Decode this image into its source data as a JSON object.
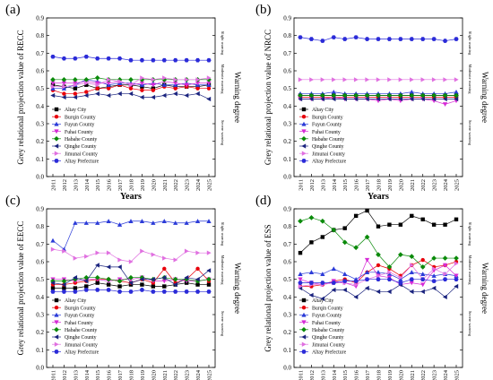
{
  "figure": {
    "shared": {
      "x_label": "Years",
      "warning_label": "Warning degree",
      "warning_levels": [
        "Slight warning",
        "Moderate warning",
        "Severe warning"
      ]
    }
  },
  "chart_data": [
    {
      "type": "line",
      "panel_label": "(a)",
      "ylabel": "Grey relational projection value of RECC",
      "xlabel": "Years",
      "ylim": [
        0.0,
        0.9
      ],
      "legend_position": "lower-left",
      "right_axis_label": "Warning degree",
      "warning_levels": [
        "Slight warning",
        "Moderate warning",
        "Severe warning"
      ],
      "x": [
        2011,
        2012,
        2013,
        2014,
        2015,
        2016,
        2017,
        2018,
        2019,
        2020,
        2021,
        2022,
        2023,
        2024,
        2025
      ],
      "series": [
        {
          "name": "Altay City",
          "color": "#000000",
          "marker": "square",
          "values": [
            0.52,
            0.51,
            0.5,
            0.52,
            0.5,
            0.51,
            0.52,
            0.52,
            0.51,
            0.5,
            0.52,
            0.51,
            0.51,
            0.51,
            0.52
          ]
        },
        {
          "name": "Burqin County",
          "color": "#e8000b",
          "marker": "circle",
          "values": [
            0.49,
            0.47,
            0.47,
            0.48,
            0.5,
            0.5,
            0.52,
            0.5,
            0.49,
            0.49,
            0.51,
            0.5,
            0.51,
            0.5,
            0.5
          ]
        },
        {
          "name": "Fuyun County",
          "color": "#2b3bd8",
          "marker": "triangle-up",
          "values": [
            0.5,
            0.5,
            0.52,
            0.55,
            0.54,
            0.52,
            0.53,
            0.53,
            0.52,
            0.53,
            0.52,
            0.52,
            0.53,
            0.52,
            0.52
          ]
        },
        {
          "name": "Fuhai County",
          "color": "#d62bd6",
          "marker": "triangle-down",
          "values": [
            0.53,
            0.53,
            0.53,
            0.54,
            0.53,
            0.53,
            0.54,
            0.52,
            0.53,
            0.52,
            0.54,
            0.53,
            0.52,
            0.53,
            0.53
          ]
        },
        {
          "name": "Habahe County",
          "color": "#0a8a0a",
          "marker": "diamond",
          "values": [
            0.55,
            0.55,
            0.55,
            0.55,
            0.56,
            0.55,
            0.55,
            0.55,
            0.55,
            0.55,
            0.55,
            0.55,
            0.55,
            0.55,
            0.55
          ]
        },
        {
          "name": "Qinghe County",
          "color": "#1a237e",
          "marker": "triangle-left",
          "values": [
            0.46,
            0.45,
            0.45,
            0.46,
            0.47,
            0.46,
            0.47,
            0.47,
            0.45,
            0.45,
            0.46,
            0.47,
            0.46,
            0.47,
            0.44
          ]
        },
        {
          "name": "Jimunai County",
          "color": "#e070e0",
          "marker": "triangle-right",
          "values": [
            0.51,
            0.51,
            0.52,
            0.53,
            0.52,
            0.55,
            0.54,
            0.52,
            0.56,
            0.55,
            0.56,
            0.55,
            0.55,
            0.55,
            0.56
          ]
        },
        {
          "name": "Altay Prefecture",
          "color": "#2b2bd8",
          "marker": "hexagon",
          "values": [
            0.68,
            0.67,
            0.67,
            0.68,
            0.67,
            0.67,
            0.67,
            0.66,
            0.66,
            0.66,
            0.66,
            0.66,
            0.66,
            0.66,
            0.66
          ]
        }
      ]
    },
    {
      "type": "line",
      "panel_label": "(b)",
      "ylabel": "Grey relational projection value of NRCC",
      "xlabel": "Years",
      "ylim": [
        0.0,
        0.9
      ],
      "legend_position": "lower-left",
      "right_axis_label": "Warning degree",
      "warning_levels": [
        "Slight warning",
        "Moderate warning",
        "Severe warning"
      ],
      "x": [
        2011,
        2012,
        2013,
        2014,
        2015,
        2016,
        2017,
        2018,
        2019,
        2020,
        2021,
        2022,
        2023,
        2024,
        2025
      ],
      "series": [
        {
          "name": "Altay City",
          "color": "#000000",
          "marker": "square",
          "values": [
            0.46,
            0.46,
            0.46,
            0.46,
            0.46,
            0.46,
            0.46,
            0.46,
            0.46,
            0.46,
            0.46,
            0.46,
            0.46,
            0.46,
            0.46
          ]
        },
        {
          "name": "Burqin County",
          "color": "#e8000b",
          "marker": "circle",
          "values": [
            0.45,
            0.45,
            0.45,
            0.45,
            0.45,
            0.45,
            0.45,
            0.45,
            0.45,
            0.45,
            0.45,
            0.45,
            0.45,
            0.45,
            0.45
          ]
        },
        {
          "name": "Fuyun County",
          "color": "#2b3bd8",
          "marker": "triangle-up",
          "values": [
            0.47,
            0.47,
            0.47,
            0.48,
            0.47,
            0.47,
            0.47,
            0.47,
            0.47,
            0.47,
            0.48,
            0.47,
            0.47,
            0.47,
            0.48
          ]
        },
        {
          "name": "Fuhai County",
          "color": "#d62bd6",
          "marker": "triangle-down",
          "values": [
            0.44,
            0.44,
            0.44,
            0.45,
            0.44,
            0.44,
            0.44,
            0.43,
            0.44,
            0.43,
            0.44,
            0.44,
            0.43,
            0.41,
            0.43
          ]
        },
        {
          "name": "Habahe County",
          "color": "#0a8a0a",
          "marker": "diamond",
          "values": [
            0.46,
            0.46,
            0.46,
            0.46,
            0.46,
            0.46,
            0.46,
            0.46,
            0.46,
            0.46,
            0.46,
            0.46,
            0.46,
            0.46,
            0.46
          ]
        },
        {
          "name": "Qinghe County",
          "color": "#1a237e",
          "marker": "triangle-left",
          "values": [
            0.44,
            0.44,
            0.44,
            0.44,
            0.44,
            0.44,
            0.44,
            0.44,
            0.44,
            0.44,
            0.44,
            0.44,
            0.44,
            0.44,
            0.44
          ]
        },
        {
          "name": "Jimunai County",
          "color": "#e070e0",
          "marker": "triangle-right",
          "values": [
            0.55,
            0.55,
            0.55,
            0.55,
            0.55,
            0.55,
            0.55,
            0.55,
            0.55,
            0.55,
            0.55,
            0.55,
            0.55,
            0.55,
            0.55
          ]
        },
        {
          "name": "Altay Prefecture",
          "color": "#2b2bd8",
          "marker": "hexagon",
          "values": [
            0.79,
            0.78,
            0.77,
            0.79,
            0.78,
            0.79,
            0.78,
            0.78,
            0.78,
            0.78,
            0.78,
            0.78,
            0.78,
            0.77,
            0.78
          ]
        }
      ]
    },
    {
      "type": "line",
      "panel_label": "(c)",
      "ylabel": "Grey relational projection value of EECC",
      "xlabel": "Years",
      "ylim": [
        0.0,
        0.9
      ],
      "legend_position": "lower-left",
      "right_axis_label": "Warning degree",
      "warning_levels": [
        "Slight warning",
        "Moderate warning",
        "Severe warning"
      ],
      "x": [
        2011,
        2012,
        2013,
        2014,
        2015,
        2016,
        2017,
        2018,
        2019,
        2020,
        2021,
        2022,
        2023,
        2024,
        2025
      ],
      "series": [
        {
          "name": "Altay City",
          "color": "#000000",
          "marker": "square",
          "values": [
            0.45,
            0.45,
            0.45,
            0.46,
            0.48,
            0.47,
            0.46,
            0.47,
            0.47,
            0.46,
            0.46,
            0.47,
            0.48,
            0.47,
            0.47
          ]
        },
        {
          "name": "Burqin County",
          "color": "#e8000b",
          "marker": "circle",
          "values": [
            0.47,
            0.47,
            0.48,
            0.49,
            0.5,
            0.5,
            0.49,
            0.48,
            0.5,
            0.48,
            0.56,
            0.48,
            0.5,
            0.56,
            0.49
          ]
        },
        {
          "name": "Fuyun County",
          "color": "#2b3bd8",
          "marker": "triangle-up",
          "values": [
            0.72,
            0.67,
            0.82,
            0.82,
            0.82,
            0.83,
            0.81,
            0.83,
            0.83,
            0.82,
            0.83,
            0.82,
            0.82,
            0.83,
            0.83
          ]
        },
        {
          "name": "Fuhai County",
          "color": "#d62bd6",
          "marker": "triangle-down",
          "values": [
            0.5,
            0.5,
            0.49,
            0.5,
            0.5,
            0.49,
            0.5,
            0.5,
            0.51,
            0.49,
            0.49,
            0.5,
            0.49,
            0.49,
            0.5
          ]
        },
        {
          "name": "Habahe County",
          "color": "#0a8a0a",
          "marker": "diamond",
          "values": [
            0.49,
            0.49,
            0.5,
            0.51,
            0.51,
            0.5,
            0.49,
            0.51,
            0.51,
            0.5,
            0.51,
            0.5,
            0.5,
            0.49,
            0.5
          ]
        },
        {
          "name": "Qinghe County",
          "color": "#1a237e",
          "marker": "triangle-left",
          "values": [
            0.48,
            0.47,
            0.51,
            0.49,
            0.58,
            0.57,
            0.57,
            0.48,
            0.5,
            0.5,
            0.51,
            0.47,
            0.51,
            0.5,
            0.55
          ]
        },
        {
          "name": "Jimunai County",
          "color": "#e070e0",
          "marker": "triangle-right",
          "values": [
            0.67,
            0.66,
            0.62,
            0.63,
            0.65,
            0.65,
            0.61,
            0.6,
            0.66,
            0.64,
            0.62,
            0.61,
            0.66,
            0.65,
            0.65
          ]
        },
        {
          "name": "Altay Prefecture",
          "color": "#2b2bd8",
          "marker": "hexagon",
          "values": [
            0.43,
            0.43,
            0.43,
            0.44,
            0.44,
            0.44,
            0.43,
            0.43,
            0.44,
            0.43,
            0.43,
            0.43,
            0.43,
            0.43,
            0.43
          ]
        }
      ]
    },
    {
      "type": "line",
      "panel_label": "(d)",
      "ylabel": "Grey relational projection value of ESS",
      "xlabel": "Years",
      "ylim": [
        0.0,
        0.9
      ],
      "legend_position": "lower-left",
      "right_axis_label": "Warning degree",
      "warning_levels": [
        "Slight warning",
        "Moderate warning",
        "Severe warning"
      ],
      "x": [
        2011,
        2012,
        2013,
        2014,
        2015,
        2016,
        2017,
        2018,
        2019,
        2020,
        2021,
        2022,
        2023,
        2024,
        2025
      ],
      "series": [
        {
          "name": "Altay City",
          "color": "#000000",
          "marker": "square",
          "values": [
            0.65,
            0.71,
            0.74,
            0.78,
            0.79,
            0.86,
            0.89,
            0.8,
            0.81,
            0.81,
            0.86,
            0.84,
            0.81,
            0.81,
            0.84
          ]
        },
        {
          "name": "Burqin County",
          "color": "#e8000b",
          "marker": "circle",
          "values": [
            0.46,
            0.46,
            0.47,
            0.49,
            0.5,
            0.48,
            0.54,
            0.58,
            0.56,
            0.52,
            0.58,
            0.61,
            0.57,
            0.58,
            0.6
          ]
        },
        {
          "name": "Fuyun County",
          "color": "#2b3bd8",
          "marker": "triangle-up",
          "values": [
            0.53,
            0.54,
            0.53,
            0.56,
            0.53,
            0.5,
            0.54,
            0.54,
            0.53,
            0.5,
            0.54,
            0.53,
            0.52,
            0.53,
            0.52
          ]
        },
        {
          "name": "Fuhai County",
          "color": "#d62bd6",
          "marker": "triangle-down",
          "values": [
            0.5,
            0.48,
            0.47,
            0.49,
            0.48,
            0.46,
            0.61,
            0.52,
            0.51,
            0.47,
            0.48,
            0.47,
            0.55,
            0.58,
            0.52
          ]
        },
        {
          "name": "Habahe County",
          "color": "#0a8a0a",
          "marker": "diamond",
          "values": [
            0.83,
            0.85,
            0.83,
            0.78,
            0.71,
            0.68,
            0.74,
            0.64,
            0.57,
            0.64,
            0.63,
            0.57,
            0.62,
            0.62,
            0.62
          ]
        },
        {
          "name": "Qinghe County",
          "color": "#1a237e",
          "marker": "triangle-left",
          "values": [
            0.45,
            0.41,
            0.39,
            0.44,
            0.44,
            0.4,
            0.45,
            0.43,
            0.43,
            0.47,
            0.43,
            0.43,
            0.45,
            0.4,
            0.46
          ]
        },
        {
          "name": "Jimunai County",
          "color": "#e070e0",
          "marker": "triangle-right",
          "values": [
            0.46,
            0.47,
            0.47,
            0.48,
            0.48,
            0.47,
            0.5,
            0.52,
            0.54,
            0.51,
            0.58,
            0.5,
            0.56,
            0.53,
            0.59
          ]
        },
        {
          "name": "Altay Prefecture",
          "color": "#2b2bd8",
          "marker": "hexagon",
          "values": [
            0.48,
            0.48,
            0.48,
            0.48,
            0.49,
            0.49,
            0.5,
            0.5,
            0.5,
            0.48,
            0.5,
            0.5,
            0.49,
            0.5,
            0.5
          ]
        }
      ]
    }
  ]
}
